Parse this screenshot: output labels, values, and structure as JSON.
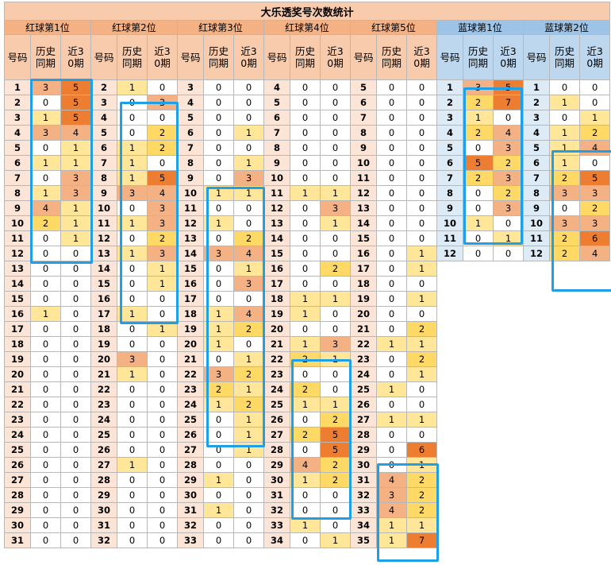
{
  "title": "大乐透奖号次数统计",
  "groups": [
    {
      "name": "红球第1位",
      "color": "red"
    },
    {
      "name": "红球第2位",
      "color": "red"
    },
    {
      "name": "红球第3位",
      "color": "red"
    },
    {
      "name": "红球第4位",
      "color": "red"
    },
    {
      "name": "红球第5位",
      "color": "red"
    },
    {
      "name": "蓝球第1位",
      "color": "blue"
    },
    {
      "name": "蓝球第2位",
      "color": "blue"
    }
  ],
  "subheaders": [
    "号码",
    "历史同期",
    "近30期"
  ],
  "highlight_colors": {
    "low": "#ffe699",
    "mid": "#ffd966",
    "high": "#f4b183",
    "top": "#ed7d31",
    "box": "#1fa0e6"
  },
  "sections": [
    {
      "rows": [
        [
          1,
          3,
          5
        ],
        [
          2,
          0,
          5
        ],
        [
          3,
          1,
          5
        ],
        [
          4,
          3,
          4
        ],
        [
          5,
          0,
          1
        ],
        [
          6,
          1,
          1
        ],
        [
          7,
          0,
          3
        ],
        [
          8,
          1,
          3
        ],
        [
          9,
          4,
          1
        ],
        [
          10,
          2,
          1
        ],
        [
          11,
          0,
          1
        ],
        [
          12,
          0,
          0
        ],
        [
          13,
          0,
          0
        ],
        [
          14,
          0,
          0
        ],
        [
          15,
          0,
          0
        ],
        [
          16,
          1,
          0
        ],
        [
          17,
          0,
          0
        ],
        [
          18,
          0,
          0
        ],
        [
          19,
          0,
          0
        ],
        [
          20,
          0,
          0
        ],
        [
          21,
          0,
          0
        ],
        [
          22,
          0,
          0
        ],
        [
          23,
          0,
          0
        ],
        [
          24,
          0,
          0
        ],
        [
          25,
          0,
          0
        ],
        [
          26,
          0,
          0
        ],
        [
          27,
          0,
          0
        ],
        [
          28,
          0,
          0
        ],
        [
          29,
          0,
          0
        ],
        [
          30,
          0,
          0
        ],
        [
          31,
          0,
          0
        ]
      ]
    },
    {
      "rows": [
        [
          2,
          1,
          0
        ],
        [
          3,
          0,
          3
        ],
        [
          4,
          0,
          0
        ],
        [
          5,
          0,
          2
        ],
        [
          6,
          1,
          2
        ],
        [
          7,
          1,
          0
        ],
        [
          8,
          1,
          5
        ],
        [
          9,
          3,
          4
        ],
        [
          10,
          0,
          3
        ],
        [
          11,
          1,
          3
        ],
        [
          12,
          0,
          2
        ],
        [
          13,
          1,
          3
        ],
        [
          14,
          0,
          1
        ],
        [
          15,
          0,
          1
        ],
        [
          16,
          0,
          0
        ],
        [
          17,
          1,
          0
        ],
        [
          18,
          0,
          1
        ],
        [
          19,
          0,
          0
        ],
        [
          20,
          3,
          0
        ],
        [
          21,
          1,
          0
        ],
        [
          22,
          0,
          0
        ],
        [
          23,
          0,
          0
        ],
        [
          24,
          0,
          0
        ],
        [
          25,
          0,
          0
        ],
        [
          26,
          0,
          0
        ],
        [
          27,
          1,
          0
        ],
        [
          28,
          0,
          0
        ],
        [
          29,
          0,
          0
        ],
        [
          30,
          0,
          0
        ],
        [
          31,
          0,
          0
        ],
        [
          32,
          0,
          0
        ]
      ]
    },
    {
      "rows": [
        [
          3,
          0,
          0
        ],
        [
          4,
          0,
          0
        ],
        [
          5,
          0,
          0
        ],
        [
          6,
          0,
          1
        ],
        [
          7,
          0,
          0
        ],
        [
          8,
          0,
          1
        ],
        [
          9,
          0,
          3
        ],
        [
          10,
          1,
          1
        ],
        [
          11,
          0,
          0
        ],
        [
          12,
          1,
          0
        ],
        [
          13,
          0,
          2
        ],
        [
          14,
          3,
          4
        ],
        [
          15,
          0,
          1
        ],
        [
          16,
          0,
          3
        ],
        [
          17,
          0,
          0
        ],
        [
          18,
          1,
          4
        ],
        [
          19,
          1,
          2
        ],
        [
          20,
          1,
          0
        ],
        [
          21,
          0,
          1
        ],
        [
          22,
          3,
          2
        ],
        [
          23,
          2,
          1
        ],
        [
          24,
          1,
          2
        ],
        [
          25,
          0,
          1
        ],
        [
          26,
          0,
          1
        ],
        [
          27,
          0,
          1
        ],
        [
          28,
          0,
          0
        ],
        [
          29,
          1,
          0
        ],
        [
          30,
          0,
          0
        ],
        [
          31,
          1,
          0
        ],
        [
          32,
          0,
          0
        ],
        [
          33,
          0,
          0
        ]
      ]
    },
    {
      "rows": [
        [
          4,
          0,
          0
        ],
        [
          5,
          0,
          0
        ],
        [
          6,
          0,
          0
        ],
        [
          7,
          0,
          0
        ],
        [
          8,
          0,
          0
        ],
        [
          9,
          0,
          0
        ],
        [
          10,
          0,
          0
        ],
        [
          11,
          1,
          1
        ],
        [
          12,
          0,
          3
        ],
        [
          13,
          0,
          1
        ],
        [
          14,
          0,
          0
        ],
        [
          15,
          0,
          0
        ],
        [
          16,
          0,
          2
        ],
        [
          17,
          0,
          0
        ],
        [
          18,
          1,
          1
        ],
        [
          19,
          1,
          0
        ],
        [
          20,
          0,
          0
        ],
        [
          21,
          1,
          3
        ],
        [
          22,
          2,
          1
        ],
        [
          23,
          0,
          0
        ],
        [
          24,
          2,
          0
        ],
        [
          25,
          1,
          1
        ],
        [
          26,
          0,
          2
        ],
        [
          27,
          2,
          5
        ],
        [
          28,
          0,
          5
        ],
        [
          29,
          4,
          2
        ],
        [
          30,
          1,
          2
        ],
        [
          31,
          0,
          0
        ],
        [
          32,
          0,
          0
        ],
        [
          33,
          1,
          0
        ],
        [
          34,
          0,
          1
        ]
      ]
    },
    {
      "rows": [
        [
          5,
          0,
          0
        ],
        [
          6,
          0,
          0
        ],
        [
          7,
          0,
          0
        ],
        [
          8,
          0,
          0
        ],
        [
          9,
          0,
          0
        ],
        [
          10,
          0,
          0
        ],
        [
          11,
          0,
          0
        ],
        [
          12,
          0,
          0
        ],
        [
          13,
          0,
          0
        ],
        [
          14,
          0,
          0
        ],
        [
          15,
          0,
          0
        ],
        [
          16,
          0,
          1
        ],
        [
          17,
          0,
          1
        ],
        [
          18,
          0,
          0
        ],
        [
          19,
          0,
          1
        ],
        [
          20,
          0,
          0
        ],
        [
          21,
          0,
          2
        ],
        [
          22,
          1,
          1
        ],
        [
          23,
          0,
          2
        ],
        [
          24,
          0,
          1
        ],
        [
          25,
          1,
          0
        ],
        [
          26,
          0,
          0
        ],
        [
          27,
          1,
          1
        ],
        [
          28,
          0,
          0
        ],
        [
          29,
          0,
          6
        ],
        [
          30,
          0,
          1
        ],
        [
          31,
          4,
          2
        ],
        [
          32,
          3,
          2
        ],
        [
          33,
          4,
          2
        ],
        [
          34,
          1,
          1
        ],
        [
          35,
          1,
          7
        ]
      ]
    },
    {
      "rows": [
        [
          1,
          3,
          5
        ],
        [
          2,
          2,
          7
        ],
        [
          3,
          1,
          0
        ],
        [
          4,
          2,
          4
        ],
        [
          5,
          0,
          3
        ],
        [
          6,
          5,
          2
        ],
        [
          7,
          2,
          3
        ],
        [
          8,
          0,
          2
        ],
        [
          9,
          0,
          3
        ],
        [
          10,
          1,
          0
        ],
        [
          11,
          0,
          1
        ],
        [
          12,
          0,
          0
        ]
      ]
    },
    {
      "rows": [
        [
          1,
          0,
          0
        ],
        [
          2,
          1,
          0
        ],
        [
          3,
          0,
          1
        ],
        [
          4,
          1,
          2
        ],
        [
          5,
          1,
          4
        ],
        [
          6,
          1,
          0
        ],
        [
          7,
          2,
          5
        ],
        [
          8,
          3,
          3
        ],
        [
          9,
          0,
          2
        ],
        [
          10,
          3,
          3
        ],
        [
          11,
          2,
          6
        ],
        [
          12,
          2,
          4
        ]
      ]
    }
  ]
}
